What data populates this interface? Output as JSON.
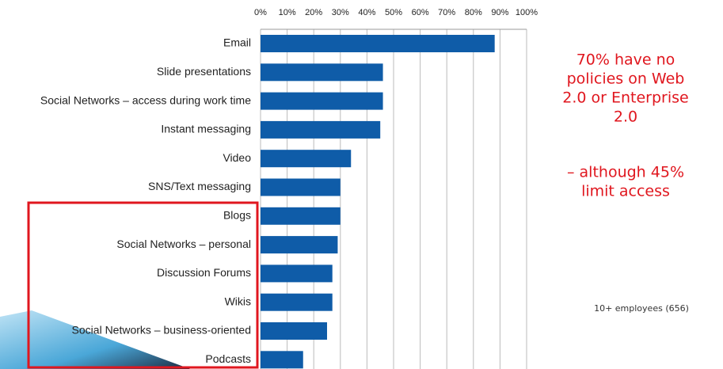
{
  "chart_data": {
    "type": "barh",
    "categories": [
      "Email",
      "Slide presentations",
      "Social Networks – access during work time",
      "Instant messaging",
      "Video",
      "SNS/Text messaging",
      "Blogs",
      "Social Networks – personal",
      "Discussion Forums",
      "Wikis",
      "Social Networks – business-oriented",
      "Podcasts"
    ],
    "values": [
      88,
      46,
      46,
      45,
      34,
      30,
      30,
      29,
      27,
      27,
      25,
      16
    ],
    "color": "#0f5ca8",
    "xlim": [
      0,
      100
    ],
    "xticks": [
      {
        "value": 0,
        "label": "0%"
      },
      {
        "value": 10,
        "label": "10%"
      },
      {
        "value": 20,
        "label": "20%"
      },
      {
        "value": 30,
        "label": "30%"
      },
      {
        "value": 40,
        "label": "40%"
      },
      {
        "value": 50,
        "label": "50%"
      },
      {
        "value": 60,
        "label": "60%"
      },
      {
        "value": 70,
        "label": "70%"
      },
      {
        "value": 80,
        "label": "80%"
      },
      {
        "value": 90,
        "label": "90%"
      },
      {
        "value": 100,
        "label": "100%"
      }
    ],
    "grid": true,
    "annotations": [
      {
        "lines": [
          "70% have no",
          "policies on Web",
          "2.0 or Enterprise",
          "2.0"
        ]
      },
      {
        "lines": [
          "– although 45%",
          "limit access"
        ]
      }
    ],
    "note": "10+ employees (656)"
  }
}
